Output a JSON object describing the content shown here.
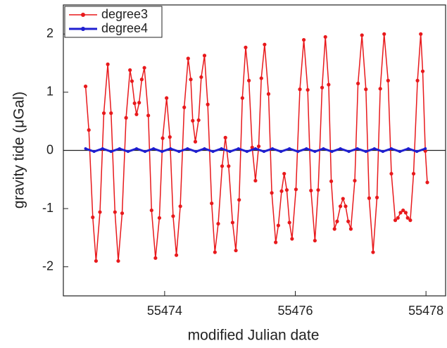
{
  "chart_data": {
    "type": "line",
    "xlabel": "modified Julian date",
    "ylabel": "gravity tide (μGal)",
    "xlim": [
      55472.45,
      55478.3
    ],
    "ylim": [
      -2.5,
      2.5
    ],
    "xticks": [
      55474,
      55476,
      55478
    ],
    "yticks": [
      -2,
      -1,
      0,
      1,
      2
    ],
    "zero_line": true,
    "legend": "upper-left",
    "series": [
      {
        "name": "degree3",
        "color": "#e8191c",
        "x": [
          55472.79,
          55472.84,
          55472.9,
          55472.95,
          55473.01,
          55473.07,
          55473.13,
          55473.18,
          55473.24,
          55473.29,
          55473.35,
          55473.41,
          55473.47,
          55473.5,
          55473.54,
          55473.57,
          55473.61,
          55473.65,
          55473.69,
          55473.75,
          55473.8,
          55473.86,
          55473.92,
          55473.97,
          55474.03,
          55474.08,
          55474.13,
          55474.18,
          55474.24,
          55474.3,
          55474.36,
          55474.4,
          55474.43,
          55474.47,
          55474.52,
          55474.56,
          55474.61,
          55474.66,
          55474.72,
          55474.77,
          55474.82,
          55474.88,
          55474.93,
          55474.98,
          55475.04,
          55475.09,
          55475.14,
          55475.19,
          55475.24,
          55475.29,
          55475.34,
          55475.39,
          55475.44,
          55475.48,
          55475.53,
          55475.59,
          55475.64,
          55475.7,
          55475.74,
          55475.79,
          55475.83,
          55475.87,
          55475.91,
          55475.95,
          55476.01,
          55476.07,
          55476.13,
          55476.19,
          55476.24,
          55476.3,
          55476.35,
          55476.41,
          55476.46,
          55476.51,
          55476.55,
          55476.6,
          55476.64,
          55476.69,
          55476.73,
          55476.77,
          55476.81,
          55476.85,
          55476.91,
          55476.96,
          55477.02,
          55477.08,
          55477.13,
          55477.19,
          55477.25,
          55477.3,
          55477.36,
          55477.42,
          55477.47,
          55477.53,
          55477.57,
          55477.61,
          55477.65,
          55477.69,
          55477.72,
          55477.76,
          55477.81,
          55477.87,
          55477.92,
          55477.95,
          55477.99,
          55478.02
        ],
        "values": [
          1.1,
          0.35,
          -1.15,
          -1.9,
          -1.06,
          0.64,
          1.48,
          0.64,
          -1.06,
          -1.9,
          -1.08,
          0.56,
          1.38,
          1.19,
          0.81,
          0.62,
          0.82,
          1.22,
          1.42,
          0.6,
          -1.03,
          -1.85,
          -1.16,
          0.21,
          0.9,
          0.23,
          -1.13,
          -1.8,
          -0.96,
          0.74,
          1.58,
          1.22,
          0.51,
          0.15,
          0.52,
          1.26,
          1.63,
          0.79,
          -0.91,
          -1.75,
          -1.26,
          -0.27,
          0.22,
          -0.27,
          -1.24,
          -1.72,
          -0.85,
          0.9,
          1.77,
          1.2,
          0.05,
          -0.52,
          0.07,
          1.24,
          1.82,
          0.97,
          -0.73,
          -1.58,
          -1.29,
          -0.7,
          -0.4,
          -0.68,
          -1.24,
          -1.52,
          -0.67,
          1.05,
          1.9,
          1.04,
          -0.69,
          -1.55,
          -0.68,
          1.08,
          1.95,
          1.13,
          -0.53,
          -1.35,
          -1.22,
          -0.96,
          -0.83,
          -0.96,
          -1.22,
          -1.35,
          -0.52,
          1.15,
          1.98,
          1.05,
          -0.82,
          -1.75,
          -0.81,
          1.06,
          2.0,
          1.2,
          -0.4,
          -1.2,
          -1.16,
          -1.07,
          -1.03,
          -1.07,
          -1.16,
          -1.2,
          -0.4,
          1.2,
          2.0,
          1.36,
          -0.01,
          -0.55
        ]
      },
      {
        "name": "degree4",
        "color": "#1f1fd0",
        "x": [
          55472.79,
          55472.92,
          55473.05,
          55473.18,
          55473.31,
          55473.44,
          55473.57,
          55473.7,
          55473.83,
          55473.96,
          55474.09,
          55474.22,
          55474.35,
          55474.48,
          55474.61,
          55474.74,
          55474.87,
          55475.0,
          55475.13,
          55475.26,
          55475.39,
          55475.52,
          55475.65,
          55475.78,
          55475.91,
          55476.04,
          55476.17,
          55476.3,
          55476.43,
          55476.56,
          55476.69,
          55476.82,
          55476.95,
          55477.08,
          55477.21,
          55477.34,
          55477.47,
          55477.6,
          55477.73,
          55477.86,
          55477.99
        ],
        "values": [
          0.03,
          -0.02,
          0.03,
          -0.02,
          0.03,
          -0.02,
          0.03,
          -0.02,
          0.03,
          -0.02,
          0.03,
          -0.02,
          0.03,
          -0.02,
          0.03,
          -0.02,
          0.03,
          -0.02,
          0.03,
          -0.02,
          0.03,
          -0.02,
          0.03,
          -0.02,
          0.03,
          -0.02,
          0.03,
          -0.02,
          0.03,
          -0.02,
          0.03,
          -0.02,
          0.03,
          -0.02,
          0.03,
          -0.02,
          0.03,
          -0.02,
          0.03,
          -0.02,
          0.03
        ]
      }
    ]
  }
}
